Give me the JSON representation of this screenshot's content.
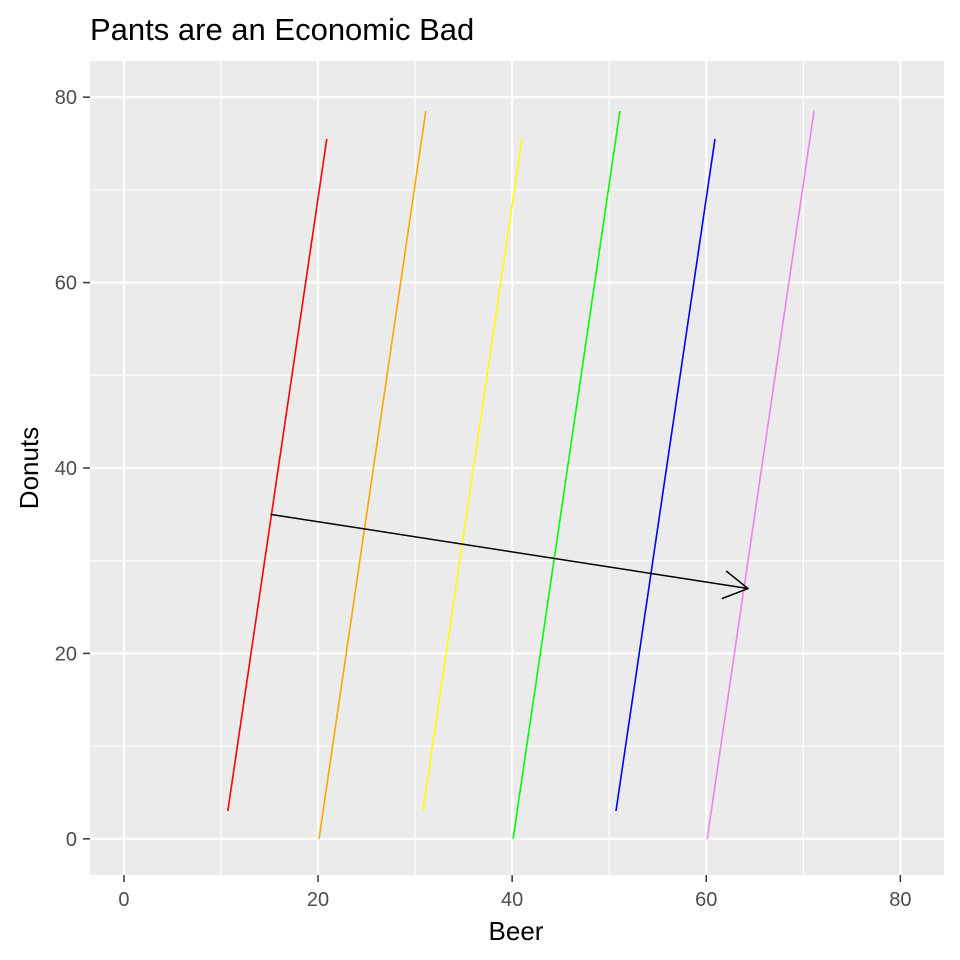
{
  "chart_data": {
    "type": "line",
    "title": "Pants are an Economic Bad",
    "xlabel": "Beer",
    "ylabel": "Donuts",
    "xlim": [
      -3.5,
      84.5
    ],
    "ylim": [
      -3.9,
      83.9
    ],
    "x_ticks": [
      0,
      20,
      40,
      60,
      80
    ],
    "y_ticks": [
      0,
      20,
      40,
      60,
      80
    ],
    "grid": true,
    "legend": "none",
    "series": [
      {
        "color": "#ff0000",
        "points": [
          [
            10.7,
            3
          ],
          [
            20.9,
            75.5
          ]
        ]
      },
      {
        "color": "#ffa500",
        "points": [
          [
            20.1,
            0
          ],
          [
            31.1,
            78.5
          ]
        ]
      },
      {
        "color": "#ffff00",
        "points": [
          [
            30.8,
            3
          ],
          [
            41.0,
            75.5
          ]
        ]
      },
      {
        "color": "#00ff00",
        "points": [
          [
            40.1,
            0
          ],
          [
            51.1,
            78.5
          ]
        ]
      },
      {
        "color": "#0000ff",
        "points": [
          [
            50.7,
            3
          ],
          [
            60.9,
            75.5
          ]
        ]
      },
      {
        "color": "#ee82ee",
        "points": [
          [
            60.1,
            0
          ],
          [
            71.1,
            78.5
          ]
        ]
      }
    ],
    "annotations": [
      {
        "type": "arrow",
        "color": "#000000",
        "from": [
          15.1,
          35.0
        ],
        "to": [
          64.3,
          27.0
        ]
      }
    ]
  }
}
